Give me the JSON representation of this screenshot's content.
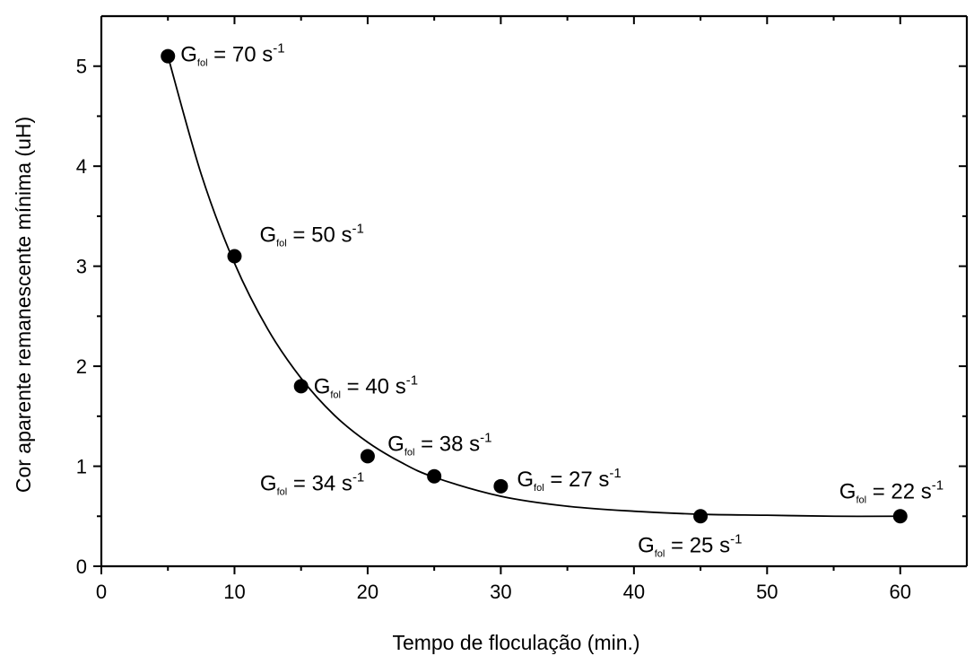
{
  "chart_data": {
    "type": "scatter",
    "xlabel": "Tempo de floculação (min.)",
    "ylabel": "Cor aparente remanescente mínima (uH)",
    "xlim": [
      0,
      65
    ],
    "ylim": [
      0,
      5.5
    ],
    "xticks": [
      0,
      10,
      20,
      30,
      40,
      50,
      60
    ],
    "yticks": [
      0,
      1,
      2,
      3,
      4,
      5
    ],
    "grid": false,
    "legend": "none",
    "points": [
      {
        "x": 5,
        "y": 5.1
      },
      {
        "x": 10,
        "y": 3.1
      },
      {
        "x": 15,
        "y": 1.8
      },
      {
        "x": 20,
        "y": 1.1
      },
      {
        "x": 25,
        "y": 0.9
      },
      {
        "x": 30,
        "y": 0.8
      },
      {
        "x": 45,
        "y": 0.5
      },
      {
        "x": 60,
        "y": 0.5
      }
    ],
    "fit_curve": {
      "type": "exponential decay",
      "x": [
        5,
        7.5,
        10,
        12.5,
        15,
        17.5,
        20,
        22.5,
        25,
        30,
        35,
        40,
        45,
        50,
        55,
        60
      ],
      "y": [
        5.1,
        3.92,
        3.03,
        2.37,
        1.88,
        1.51,
        1.24,
        1.04,
        0.89,
        0.7,
        0.6,
        0.55,
        0.52,
        0.51,
        0.5,
        0.5
      ]
    },
    "annotations": [
      {
        "main": "G",
        "sub": "fol",
        "text": " = 70 s",
        "sup": "-1",
        "x": 5,
        "y": 5.1
      },
      {
        "main": "G",
        "sub": "fol",
        "text": " = 50 s",
        "sup": "-1",
        "x": 10,
        "y": 3.1
      },
      {
        "main": "G",
        "sub": "fol",
        "text": " = 40 s",
        "sup": "-1",
        "x": 15,
        "y": 1.8
      },
      {
        "main": "G",
        "sub": "fol",
        "text": " = 38 s",
        "sup": "-1",
        "x": 25,
        "y": 0.9
      },
      {
        "main": "G",
        "sub": "fol",
        "text": " = 34 s",
        "sup": "-1",
        "x": 20,
        "y": 1.1
      },
      {
        "main": "G",
        "sub": "fol",
        "text": " = 27 s",
        "sup": "-1",
        "x": 30,
        "y": 0.8
      },
      {
        "main": "G",
        "sub": "fol",
        "text": " = 25 s",
        "sup": "-1",
        "x": 45,
        "y": 0.5
      },
      {
        "main": "G",
        "sub": "fol",
        "text": " = 22 s",
        "sup": "-1",
        "x": 60,
        "y": 0.5
      }
    ]
  }
}
